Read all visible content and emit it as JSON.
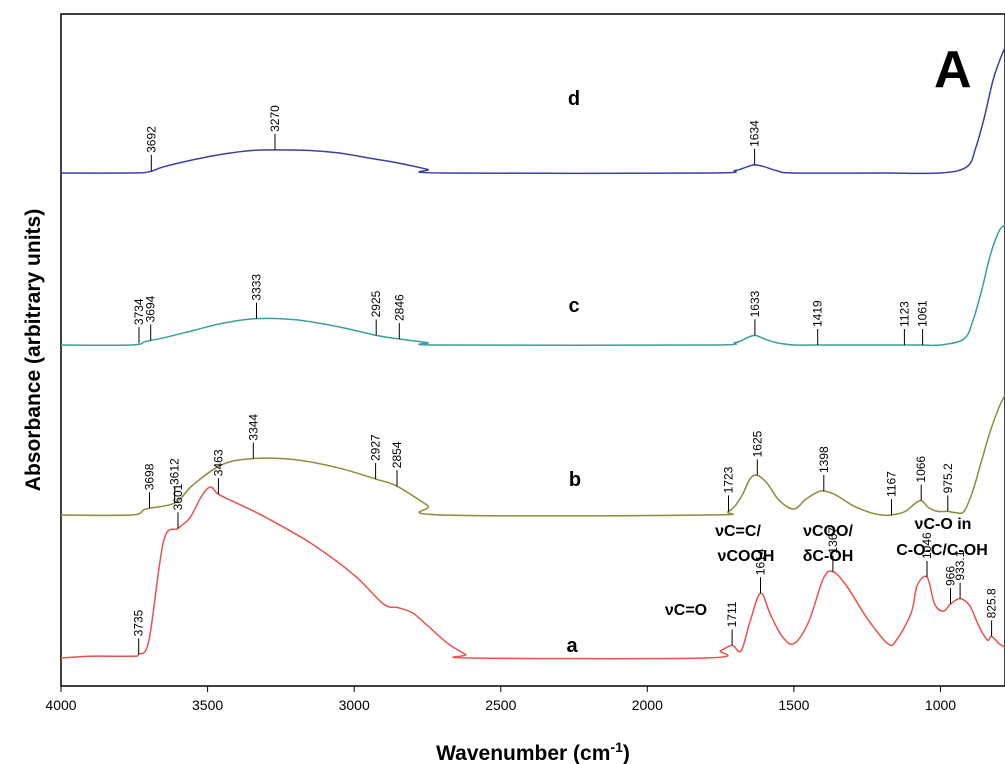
{
  "chart_data": {
    "type": "line",
    "panel_label": "A",
    "xlabel": "Wavenumber (cm-1)",
    "xlabel_main": "Wavenumber (cm",
    "xlabel_sup": "-1",
    "xlabel_end": ")",
    "ylabel": "Absorbance (arbitrary units)",
    "xlim": [
      4000,
      780
    ],
    "x_ticks": [
      4000,
      3500,
      3000,
      2500,
      2000,
      1500,
      1000
    ],
    "x_tick_labels": [
      "4000",
      "3500",
      "3000",
      "2500",
      "2000",
      "1500",
      "1000"
    ],
    "series": [
      {
        "name": "d",
        "color": "#3b3fa5",
        "points": [
          [
            4000,
            0.0
          ],
          [
            3760,
            0.0
          ],
          [
            3700,
            0.01
          ],
          [
            3650,
            0.05
          ],
          [
            3560,
            0.1
          ],
          [
            3450,
            0.15
          ],
          [
            3350,
            0.18
          ],
          [
            3270,
            0.185
          ],
          [
            3150,
            0.18
          ],
          [
            3050,
            0.16
          ],
          [
            2950,
            0.12
          ],
          [
            2850,
            0.08
          ],
          [
            2750,
            0.03
          ],
          [
            2700,
            0.0
          ],
          [
            1800,
            0.0
          ],
          [
            1700,
            0.02
          ],
          [
            1660,
            0.05
          ],
          [
            1634,
            0.065
          ],
          [
            1600,
            0.05
          ],
          [
            1560,
            0.02
          ],
          [
            1500,
            0.0
          ],
          [
            1200,
            0.0
          ],
          [
            1000,
            0.0
          ],
          [
            910,
            0.05
          ],
          [
            880,
            0.2
          ],
          [
            850,
            0.45
          ],
          [
            820,
            0.75
          ],
          [
            790,
            0.95
          ],
          [
            780,
            1.0
          ]
        ],
        "peaks": [
          3692,
          3270,
          1634
        ]
      },
      {
        "name": "c",
        "color": "#3a9fa0",
        "points": [
          [
            4000,
            0.0
          ],
          [
            3760,
            0.0
          ],
          [
            3710,
            0.03
          ],
          [
            3650,
            0.06
          ],
          [
            3550,
            0.12
          ],
          [
            3450,
            0.18
          ],
          [
            3333,
            0.22
          ],
          [
            3200,
            0.21
          ],
          [
            3050,
            0.15
          ],
          [
            2925,
            0.08
          ],
          [
            2846,
            0.05
          ],
          [
            2750,
            0.02
          ],
          [
            2700,
            0.0
          ],
          [
            1800,
            0.0
          ],
          [
            1700,
            0.02
          ],
          [
            1660,
            0.06
          ],
          [
            1633,
            0.08
          ],
          [
            1600,
            0.05
          ],
          [
            1560,
            0.02
          ],
          [
            1500,
            0.0
          ],
          [
            1419,
            0.0
          ],
          [
            1250,
            0.0
          ],
          [
            1123,
            0.0
          ],
          [
            1061,
            0.0
          ],
          [
            1000,
            0.0
          ],
          [
            920,
            0.05
          ],
          [
            890,
            0.2
          ],
          [
            860,
            0.45
          ],
          [
            830,
            0.75
          ],
          [
            800,
            0.95
          ],
          [
            780,
            1.0
          ]
        ],
        "peaks": [
          3734,
          3694,
          3333,
          2925,
          2846,
          1633,
          1419,
          1123,
          1061
        ]
      },
      {
        "name": "b",
        "color": "#8c8c3c",
        "points": [
          [
            4000,
            0.0
          ],
          [
            3760,
            0.0
          ],
          [
            3710,
            0.05
          ],
          [
            3612,
            0.1
          ],
          [
            3550,
            0.25
          ],
          [
            3450,
            0.42
          ],
          [
            3344,
            0.47
          ],
          [
            3200,
            0.46
          ],
          [
            3050,
            0.39
          ],
          [
            2927,
            0.3
          ],
          [
            2854,
            0.24
          ],
          [
            2750,
            0.08
          ],
          [
            2700,
            0.0
          ],
          [
            1800,
            0.0
          ],
          [
            1723,
            0.03
          ],
          [
            1680,
            0.15
          ],
          [
            1650,
            0.3
          ],
          [
            1625,
            0.33
          ],
          [
            1590,
            0.26
          ],
          [
            1550,
            0.12
          ],
          [
            1500,
            0.05
          ],
          [
            1460,
            0.13
          ],
          [
            1420,
            0.19
          ],
          [
            1398,
            0.2
          ],
          [
            1360,
            0.17
          ],
          [
            1300,
            0.08
          ],
          [
            1240,
            0.02
          ],
          [
            1200,
            0.0
          ],
          [
            1167,
            0.0
          ],
          [
            1120,
            0.03
          ],
          [
            1090,
            0.09
          ],
          [
            1066,
            0.12
          ],
          [
            1040,
            0.06
          ],
          [
            1010,
            0.03
          ],
          [
            975.2,
            0.03
          ],
          [
            950,
            0.02
          ],
          [
            920,
            0.03
          ],
          [
            890,
            0.2
          ],
          [
            860,
            0.45
          ],
          [
            830,
            0.7
          ],
          [
            800,
            0.9
          ],
          [
            780,
            1.0
          ]
        ],
        "peaks": [
          3698,
          3612,
          3344,
          2927,
          2854,
          1723,
          1625,
          1398,
          1167,
          1066,
          975.2
        ]
      },
      {
        "name": "a",
        "color": "#e8524f",
        "points": [
          [
            4000,
            0.0
          ],
          [
            3900,
            0.01
          ],
          [
            3760,
            0.01
          ],
          [
            3735,
            0.02
          ],
          [
            3700,
            0.1
          ],
          [
            3650,
            0.65
          ],
          [
            3601,
            0.72
          ],
          [
            3560,
            0.78
          ],
          [
            3520,
            0.9
          ],
          [
            3490,
            0.95
          ],
          [
            3463,
            0.91
          ],
          [
            3400,
            0.86
          ],
          [
            3300,
            0.78
          ],
          [
            3150,
            0.64
          ],
          [
            3000,
            0.46
          ],
          [
            2900,
            0.3
          ],
          [
            2850,
            0.28
          ],
          [
            2800,
            0.25
          ],
          [
            2750,
            0.18
          ],
          [
            2680,
            0.08
          ],
          [
            2620,
            0.02
          ],
          [
            2600,
            0.0
          ],
          [
            1800,
            0.0
          ],
          [
            1750,
            0.04
          ],
          [
            1711,
            0.07
          ],
          [
            1680,
            0.04
          ],
          [
            1650,
            0.2
          ],
          [
            1614,
            0.36
          ],
          [
            1580,
            0.24
          ],
          [
            1540,
            0.12
          ],
          [
            1500,
            0.08
          ],
          [
            1450,
            0.2
          ],
          [
            1400,
            0.44
          ],
          [
            1367,
            0.48
          ],
          [
            1320,
            0.4
          ],
          [
            1250,
            0.22
          ],
          [
            1180,
            0.08
          ],
          [
            1150,
            0.1
          ],
          [
            1100,
            0.25
          ],
          [
            1080,
            0.4
          ],
          [
            1046,
            0.45
          ],
          [
            1020,
            0.3
          ],
          [
            990,
            0.26
          ],
          [
            966,
            0.3
          ],
          [
            933.1,
            0.33
          ],
          [
            900,
            0.29
          ],
          [
            870,
            0.18
          ],
          [
            840,
            0.1
          ],
          [
            825.8,
            0.12
          ],
          [
            800,
            0.08
          ],
          [
            780,
            0.06
          ]
        ],
        "peaks": [
          3735,
          3601,
          3463,
          1711,
          1614,
          1367,
          1046,
          966,
          933.1,
          825.8
        ]
      }
    ],
    "peak_labels": {
      "d": [
        "3692",
        "3270",
        "1634"
      ],
      "c": [
        "3734",
        "3694",
        "3333",
        "2925",
        "2846",
        "1633",
        "1419",
        "1123",
        "1061"
      ],
      "b": [
        "3698",
        "3612",
        "3344",
        "2927",
        "2854",
        "1723",
        "1625",
        "1398",
        "1167",
        "1066",
        "975.2"
      ],
      "a": [
        "3735",
        "3601",
        "3463",
        "1711",
        "1614",
        "1367",
        "1046",
        "966",
        "933.1",
        "825.8"
      ]
    },
    "annotations": [
      {
        "text": "νC=O"
      },
      {
        "text": "νC=C/"
      },
      {
        "text": "νCOOH"
      },
      {
        "text": "νCOO/"
      },
      {
        "text": "δC-OH"
      },
      {
        "text": "νC-O in"
      },
      {
        "text": "C-O-C/C-OH"
      }
    ]
  }
}
